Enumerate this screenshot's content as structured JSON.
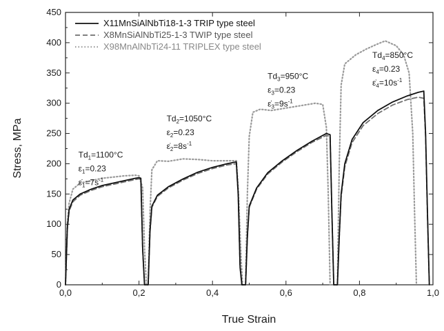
{
  "chart_data": {
    "type": "line",
    "xlabel": "True Strain",
    "ylabel": "Stress, MPa",
    "xlim": [
      0.0,
      1.0
    ],
    "ylim": [
      0,
      450
    ],
    "x_ticks": [
      0.0,
      0.2,
      0.4,
      0.6,
      0.8,
      1.0
    ],
    "x_tick_labels": [
      "0,0",
      "0,2",
      "0,4",
      "0,6",
      "0,8",
      "1,0"
    ],
    "y_ticks": [
      0,
      50,
      100,
      150,
      200,
      250,
      300,
      350,
      400,
      450
    ],
    "y_tick_labels": [
      "0",
      "50",
      "100",
      "150",
      "200",
      "250",
      "300",
      "350",
      "400",
      "450"
    ],
    "grid": false,
    "legend_position": "top-left",
    "series": [
      {
        "name": "X11MnSiAlNbTi18-1-3 TRIP type steel",
        "color": "#111111",
        "style": "solid",
        "points": [
          [
            0.0,
            0
          ],
          [
            0.005,
            95
          ],
          [
            0.01,
            125
          ],
          [
            0.02,
            140
          ],
          [
            0.04,
            150
          ],
          [
            0.07,
            158
          ],
          [
            0.1,
            164
          ],
          [
            0.13,
            168
          ],
          [
            0.16,
            172
          ],
          [
            0.19,
            176
          ],
          [
            0.2,
            177
          ],
          [
            0.205,
            176
          ],
          [
            0.21,
            60
          ],
          [
            0.215,
            0
          ],
          [
            0.225,
            0
          ],
          [
            0.23,
            90
          ],
          [
            0.235,
            130
          ],
          [
            0.25,
            148
          ],
          [
            0.28,
            162
          ],
          [
            0.32,
            175
          ],
          [
            0.36,
            186
          ],
          [
            0.4,
            194
          ],
          [
            0.44,
            200
          ],
          [
            0.465,
            203
          ],
          [
            0.47,
            150
          ],
          [
            0.475,
            30
          ],
          [
            0.48,
            0
          ],
          [
            0.49,
            0
          ],
          [
            0.495,
            80
          ],
          [
            0.5,
            130
          ],
          [
            0.52,
            160
          ],
          [
            0.55,
            185
          ],
          [
            0.59,
            205
          ],
          [
            0.63,
            222
          ],
          [
            0.67,
            237
          ],
          [
            0.71,
            250
          ],
          [
            0.72,
            248
          ],
          [
            0.725,
            120
          ],
          [
            0.73,
            0
          ],
          [
            0.74,
            0
          ],
          [
            0.745,
            80
          ],
          [
            0.75,
            150
          ],
          [
            0.76,
            200
          ],
          [
            0.78,
            240
          ],
          [
            0.81,
            268
          ],
          [
            0.85,
            288
          ],
          [
            0.89,
            302
          ],
          [
            0.93,
            312
          ],
          [
            0.96,
            318
          ],
          [
            0.975,
            320
          ],
          [
            0.98,
            250
          ],
          [
            0.985,
            120
          ],
          [
            0.99,
            0
          ]
        ]
      },
      {
        "name": "X8MnSiAlNbTi25-1-3 TWIP type steel",
        "color": "#6f6f6f",
        "style": "dashed",
        "points": [
          [
            0.0,
            0
          ],
          [
            0.005,
            92
          ],
          [
            0.01,
            122
          ],
          [
            0.02,
            137
          ],
          [
            0.04,
            148
          ],
          [
            0.07,
            156
          ],
          [
            0.1,
            162
          ],
          [
            0.13,
            166
          ],
          [
            0.16,
            170
          ],
          [
            0.19,
            174
          ],
          [
            0.2,
            175
          ],
          [
            0.205,
            174
          ],
          [
            0.21,
            58
          ],
          [
            0.215,
            0
          ],
          [
            0.225,
            0
          ],
          [
            0.23,
            88
          ],
          [
            0.235,
            128
          ],
          [
            0.25,
            146
          ],
          [
            0.28,
            160
          ],
          [
            0.32,
            173
          ],
          [
            0.36,
            184
          ],
          [
            0.4,
            192
          ],
          [
            0.44,
            198
          ],
          [
            0.465,
            200
          ],
          [
            0.47,
            148
          ],
          [
            0.475,
            28
          ],
          [
            0.48,
            0
          ],
          [
            0.49,
            0
          ],
          [
            0.495,
            78
          ],
          [
            0.5,
            128
          ],
          [
            0.52,
            158
          ],
          [
            0.55,
            183
          ],
          [
            0.59,
            203
          ],
          [
            0.63,
            220
          ],
          [
            0.67,
            235
          ],
          [
            0.71,
            247
          ],
          [
            0.72,
            245
          ],
          [
            0.725,
            118
          ],
          [
            0.73,
            0
          ],
          [
            0.74,
            0
          ],
          [
            0.745,
            78
          ],
          [
            0.75,
            145
          ],
          [
            0.76,
            195
          ],
          [
            0.78,
            235
          ],
          [
            0.81,
            263
          ],
          [
            0.85,
            283
          ],
          [
            0.89,
            297
          ],
          [
            0.93,
            306
          ],
          [
            0.96,
            310
          ],
          [
            0.975,
            308
          ],
          [
            0.98,
            245
          ],
          [
            0.985,
            115
          ],
          [
            0.99,
            0
          ]
        ]
      },
      {
        "name": "X98MnAlNbTi24-11 TRIPLEX type steel",
        "color": "#9a9a9a",
        "style": "dotted",
        "points": [
          [
            0.0,
            0
          ],
          [
            0.005,
            100
          ],
          [
            0.01,
            135
          ],
          [
            0.02,
            158
          ],
          [
            0.04,
            168
          ],
          [
            0.07,
            172
          ],
          [
            0.1,
            176
          ],
          [
            0.13,
            178
          ],
          [
            0.16,
            180
          ],
          [
            0.19,
            181
          ],
          [
            0.2,
            180
          ],
          [
            0.21,
            160
          ],
          [
            0.215,
            60
          ],
          [
            0.22,
            0
          ],
          [
            0.225,
            0
          ],
          [
            0.23,
            120
          ],
          [
            0.235,
            190
          ],
          [
            0.25,
            205
          ],
          [
            0.28,
            204
          ],
          [
            0.32,
            208
          ],
          [
            0.36,
            207
          ],
          [
            0.4,
            205
          ],
          [
            0.44,
            205
          ],
          [
            0.465,
            205
          ],
          [
            0.47,
            160
          ],
          [
            0.478,
            40
          ],
          [
            0.482,
            0
          ],
          [
            0.49,
            0
          ],
          [
            0.495,
            150
          ],
          [
            0.5,
            245
          ],
          [
            0.51,
            285
          ],
          [
            0.53,
            290
          ],
          [
            0.56,
            288
          ],
          [
            0.6,
            292
          ],
          [
            0.64,
            296
          ],
          [
            0.68,
            300
          ],
          [
            0.7,
            298
          ],
          [
            0.71,
            260
          ],
          [
            0.715,
            150
          ],
          [
            0.72,
            0
          ],
          [
            0.74,
            0
          ],
          [
            0.745,
            200
          ],
          [
            0.75,
            330
          ],
          [
            0.76,
            365
          ],
          [
            0.79,
            380
          ],
          [
            0.82,
            390
          ],
          [
            0.85,
            398
          ],
          [
            0.87,
            403
          ],
          [
            0.9,
            395
          ],
          [
            0.92,
            380
          ],
          [
            0.935,
            350
          ],
          [
            0.945,
            250
          ],
          [
            0.95,
            120
          ],
          [
            0.955,
            0
          ]
        ]
      }
    ],
    "annotations": [
      {
        "lines": [
          {
            "main": "Td",
            "sub": "1",
            "rest": "=1100°C"
          },
          {
            "main": "ε",
            "sub": "1",
            "rest": "=0.23"
          },
          {
            "main": "ε̇",
            "sub": "1",
            "rest": "=7s",
            "sup": "-1"
          }
        ],
        "x": 0.035,
        "y": 210
      },
      {
        "lines": [
          {
            "main": "Td",
            "sub": "2",
            "rest": "=1050°C"
          },
          {
            "main": "ε",
            "sub": "2",
            "rest": "=0.23"
          },
          {
            "main": "ε̇",
            "sub": "2",
            "rest": "=8s",
            "sup": "-1"
          }
        ],
        "x": 0.275,
        "y": 270
      },
      {
        "lines": [
          {
            "main": "Td",
            "sub": "3",
            "rest": "=950°C"
          },
          {
            "main": "ε",
            "sub": "3",
            "rest": "=0.23"
          },
          {
            "main": "ε̇",
            "sub": "3",
            "rest": "=9s",
            "sup": "-1"
          }
        ],
        "x": 0.55,
        "y": 340
      },
      {
        "lines": [
          {
            "main": "Td",
            "sub": "4",
            "rest": "=850°C"
          },
          {
            "main": "ε",
            "sub": "4",
            "rest": "=0.23"
          },
          {
            "main": "ε̇",
            "sub": "4",
            "rest": "=10s",
            "sup": "-1"
          }
        ],
        "x": 0.835,
        "y": 375
      }
    ]
  }
}
